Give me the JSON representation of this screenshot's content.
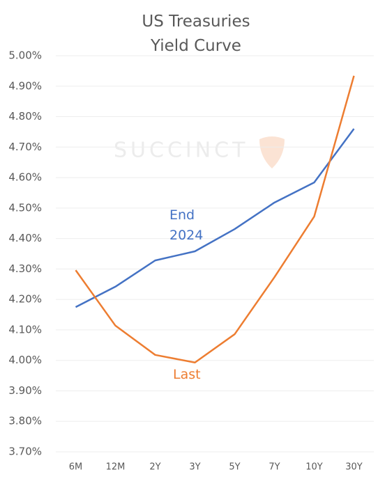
{
  "chart_data": {
    "type": "line",
    "title": "US Treasuries Yield Curve",
    "watermark": "SUCCINCT",
    "categories": [
      "6M",
      "12M",
      "2Y",
      "3Y",
      "5Y",
      "7Y",
      "10Y",
      "30Y"
    ],
    "series": [
      {
        "name": "End 2024",
        "color": "#4472c4",
        "values": [
          4.175,
          4.242,
          4.328,
          4.358,
          4.431,
          4.518,
          4.584,
          4.76
        ]
      },
      {
        "name": "Last",
        "color": "#ed7d31",
        "values": [
          4.296,
          4.114,
          4.018,
          3.993,
          4.086,
          4.273,
          4.472,
          4.934
        ]
      }
    ],
    "ylim": [
      3.7,
      5.0
    ],
    "yticks": [
      {
        "value": 3.7,
        "label": "3.70%"
      },
      {
        "value": 3.8,
        "label": "3.80%"
      },
      {
        "value": 3.9,
        "label": "3.90%"
      },
      {
        "value": 4.0,
        "label": "4.00%"
      },
      {
        "value": 4.1,
        "label": "4.10%"
      },
      {
        "value": 4.2,
        "label": "4.20%"
      },
      {
        "value": 4.3,
        "label": "4.30%"
      },
      {
        "value": 4.4,
        "label": "4.40%"
      },
      {
        "value": 4.5,
        "label": "4.50%"
      },
      {
        "value": 4.6,
        "label": "4.60%"
      },
      {
        "value": 4.7,
        "label": "4.70%"
      },
      {
        "value": 4.8,
        "label": "4.80%"
      },
      {
        "value": 4.9,
        "label": "4.90%"
      },
      {
        "value": 5.0,
        "label": "5.00%"
      }
    ],
    "grid": true
  }
}
